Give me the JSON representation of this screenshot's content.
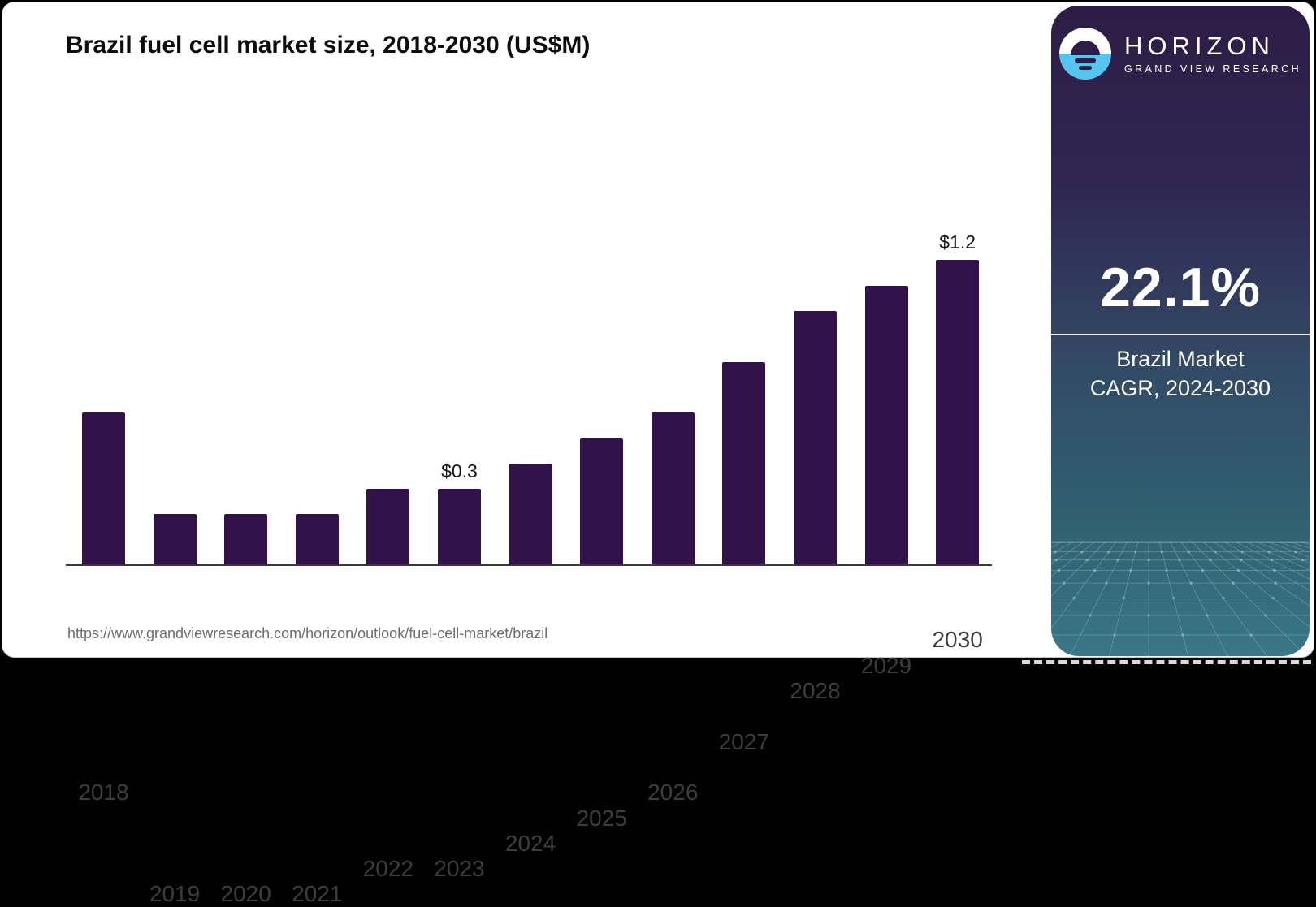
{
  "header": {
    "title": "Brazil fuel cell market size, 2018-2030 (US$M)"
  },
  "source_url": "https://www.grandviewresearch.com/horizon/outlook/fuel-cell-market/brazil",
  "chart_data": {
    "type": "bar",
    "title": "Brazil fuel cell market size, 2018-2030 (US$M)",
    "unit": "US$M",
    "categories": [
      "2018",
      "2019",
      "2020",
      "2021",
      "2022",
      "2023",
      "2024",
      "2025",
      "2026",
      "2027",
      "2028",
      "2029",
      "2030"
    ],
    "values": [
      0.6,
      0.2,
      0.2,
      0.2,
      0.3,
      0.3,
      0.4,
      0.5,
      0.6,
      0.8,
      1.0,
      1.1,
      1.2
    ],
    "bar_labels": {
      "2023": "$0.3",
      "2030": "$1.2"
    },
    "ylim": [
      0,
      1.3
    ],
    "grid": false,
    "legend": false,
    "bar_color": "#33124a"
  },
  "sidebar": {
    "brand": {
      "name": "HORIZON",
      "subtitle": "GRAND VIEW RESEARCH",
      "logo": "horizon-sun-logo"
    },
    "stat": {
      "value": "22.1%",
      "label_line1": "Brazil Market",
      "label_line2": "CAGR, 2024-2030"
    }
  },
  "colors": {
    "bar": "#33124a",
    "accent_blue": "#55c5f0",
    "sidebar_top": "#2d1c46",
    "sidebar_mid": "#334a66",
    "sidebar_bottom": "#3a7787",
    "mesh_line": "#8fb9c1"
  }
}
